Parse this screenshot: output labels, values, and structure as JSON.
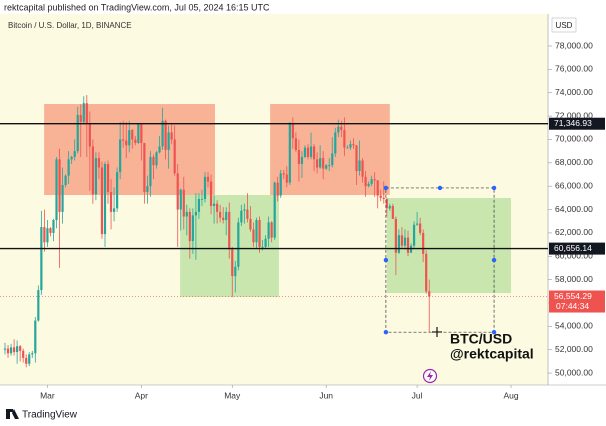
{
  "header": "rektcapital published on TradingView.com, Jul 05, 2024 16:15 UTC",
  "footer": "TradingView",
  "chart_data": {
    "type": "candlestick",
    "title": "Bitcoin / U.S. Dollar, 1D, BINANCE",
    "currency": "USD",
    "up_color": "#26a69a",
    "down_color": "#ef5350",
    "xlim": [
      -1.65,
      179.2
    ],
    "xticks": [
      {
        "value": 14,
        "label": "Mar"
      },
      {
        "value": 45,
        "label": "Apr"
      },
      {
        "value": 75,
        "label": "May"
      },
      {
        "value": 106,
        "label": "Jun"
      },
      {
        "value": 136,
        "label": "Jul"
      },
      {
        "value": 167,
        "label": "Aug"
      }
    ],
    "ylim": [
      48980,
      80740
    ],
    "yticks": [
      {
        "value": 50000,
        "label": "50,000.00"
      },
      {
        "value": 52000,
        "label": "52,000.00"
      },
      {
        "value": 54000,
        "label": "54,000.00"
      },
      {
        "value": 56000,
        "label": "56,000.00"
      },
      {
        "value": 58000,
        "label": "58,000.00"
      },
      {
        "value": 60000,
        "label": "60,000.00"
      },
      {
        "value": 62000,
        "label": "62,000.00"
      },
      {
        "value": 64000,
        "label": "64,000.00"
      },
      {
        "value": 66000,
        "label": "66,000.00"
      },
      {
        "value": 68000,
        "label": "68,000.00"
      },
      {
        "value": 70000,
        "label": "70,000.00"
      },
      {
        "value": 72000,
        "label": "72,000.00"
      },
      {
        "value": 74000,
        "label": "74,000.00"
      },
      {
        "value": 76000,
        "label": "76,000.00"
      },
      {
        "value": 78000,
        "label": "78,000.00"
      }
    ],
    "levels": [
      {
        "value": 71346.93,
        "label": "71,346.93"
      },
      {
        "value": 60656.14,
        "label": "60,656.14"
      }
    ],
    "last_price": {
      "value": 56554.29,
      "label": "56,554.29",
      "countdown": "07:44:34"
    },
    "zones": [
      {
        "color": "#f7ab8f",
        "x": [
          12.9,
          69.3
        ],
        "y": [
          65243,
          73034
        ]
      },
      {
        "color": "#c2e3a8",
        "x": [
          57.8,
          90.4
        ],
        "y": [
          56510,
          65243
        ]
      },
      {
        "color": "#f7ab8f",
        "x": [
          87.5,
          127
        ],
        "y": [
          65243,
          73034
        ]
      },
      {
        "color": "#c2e3a8",
        "x": [
          126,
          167
        ],
        "y": [
          56850,
          64990
        ]
      }
    ],
    "projection": {
      "x": [
        125.7,
        161.4
      ],
      "y": [
        53500,
        65850
      ]
    },
    "annotation": [
      "BTC/USD",
      "@rektcapital"
    ],
    "candles": [
      [
        52000,
        52600,
        51600,
        52100
      ],
      [
        52100,
        52400,
        51300,
        51700
      ],
      [
        51700,
        52500,
        51500,
        52200
      ],
      [
        52200,
        52900,
        51500,
        51800
      ],
      [
        51800,
        52800,
        50800,
        52300
      ],
      [
        52300,
        52400,
        51000,
        51900
      ],
      [
        51900,
        52100,
        50900,
        51300
      ],
      [
        51300,
        51600,
        50500,
        50800
      ],
      [
        50800,
        51800,
        50600,
        51600
      ],
      [
        51600,
        51900,
        51300,
        51700
      ],
      [
        51700,
        54800,
        50900,
        54500
      ],
      [
        54500,
        57500,
        54400,
        57100
      ],
      [
        57100,
        63900,
        56700,
        62500
      ],
      [
        62500,
        64000,
        60400,
        61200
      ],
      [
        61200,
        63100,
        60800,
        62400
      ],
      [
        62400,
        62500,
        61700,
        62000
      ],
      [
        62000,
        63200,
        61300,
        63100
      ],
      [
        63100,
        68500,
        62400,
        68300
      ],
      [
        68300,
        69200,
        59000,
        63800
      ],
      [
        63800,
        67600,
        62800,
        66100
      ],
      [
        66100,
        67000,
        65900,
        66900
      ],
      [
        66900,
        69000,
        66200,
        68300
      ],
      [
        68300,
        68600,
        67900,
        68500
      ],
      [
        68500,
        70000,
        68200,
        69000
      ],
      [
        69000,
        72800,
        68800,
        72100
      ],
      [
        72100,
        73000,
        68500,
        71500
      ],
      [
        71500,
        73700,
        71300,
        73100
      ],
      [
        73100,
        73800,
        68500,
        71400
      ],
      [
        71400,
        72400,
        65600,
        69400
      ],
      [
        69400,
        70000,
        64500,
        65300
      ],
      [
        65300,
        68900,
        64800,
        68400
      ],
      [
        68400,
        68900,
        66600,
        67600
      ],
      [
        67600,
        68100,
        61500,
        61900
      ],
      [
        61900,
        68100,
        60800,
        67900
      ],
      [
        67900,
        68200,
        64500,
        65500
      ],
      [
        65500,
        66600,
        62300,
        63800
      ],
      [
        63800,
        65900,
        63000,
        64100
      ],
      [
        64100,
        67600,
        63800,
        67200
      ],
      [
        67200,
        71500,
        66600,
        70000
      ],
      [
        70000,
        71600,
        69300,
        69900
      ],
      [
        69900,
        71500,
        68400,
        69500
      ],
      [
        69500,
        71600,
        68900,
        70800
      ],
      [
        70800,
        70900,
        69200,
        70000
      ],
      [
        70000,
        70300,
        69500,
        69700
      ],
      [
        69700,
        71400,
        69600,
        71300
      ],
      [
        71300,
        71300,
        68200,
        69700
      ],
      [
        69700,
        69700,
        64500,
        65500
      ],
      [
        65500,
        66900,
        64500,
        66000
      ],
      [
        66000,
        69000,
        65100,
        68500
      ],
      [
        68500,
        68700,
        66600,
        67800
      ],
      [
        67800,
        69000,
        67500,
        68900
      ],
      [
        68900,
        70300,
        68800,
        69400
      ],
      [
        69400,
        72700,
        69100,
        71600
      ],
      [
        71600,
        71700,
        68300,
        69100
      ],
      [
        69100,
        71200,
        67500,
        70600
      ],
      [
        70600,
        71300,
        69600,
        70000
      ],
      [
        70000,
        71200,
        66900,
        67100
      ],
      [
        67100,
        67900,
        60800,
        64000
      ],
      [
        64000,
        65800,
        62200,
        65700
      ],
      [
        65700,
        66800,
        62300,
        63400
      ],
      [
        63400,
        64400,
        61800,
        63800
      ],
      [
        63800,
        64100,
        59800,
        61300
      ],
      [
        61300,
        64100,
        60200,
        63500
      ],
      [
        63500,
        65400,
        59700,
        63800
      ],
      [
        63800,
        65400,
        63200,
        64900
      ],
      [
        64900,
        65700,
        64300,
        64900
      ],
      [
        64900,
        67200,
        64600,
        66800
      ],
      [
        66800,
        67200,
        65900,
        66400
      ],
      [
        66400,
        67000,
        63600,
        64300
      ],
      [
        64300,
        65200,
        62800,
        64500
      ],
      [
        64500,
        64800,
        62800,
        63800
      ],
      [
        63800,
        64400,
        62900,
        63300
      ],
      [
        63300,
        64200,
        62800,
        63100
      ],
      [
        63100,
        64200,
        61800,
        63800
      ],
      [
        63800,
        64600,
        59800,
        60600
      ],
      [
        60600,
        60800,
        56500,
        58300
      ],
      [
        58300,
        59600,
        56900,
        59100
      ],
      [
        59100,
        63300,
        58800,
        62900
      ],
      [
        62900,
        64400,
        62600,
        63900
      ],
      [
        63900,
        64500,
        62800,
        64000
      ],
      [
        64000,
        65400,
        62900,
        63200
      ],
      [
        63200,
        64300,
        62100,
        62300
      ],
      [
        62300,
        62900,
        60800,
        61200
      ],
      [
        61200,
        63300,
        60700,
        63100
      ],
      [
        63100,
        63400,
        60300,
        60800
      ],
      [
        60800,
        61400,
        60500,
        60800
      ],
      [
        60800,
        61800,
        60700,
        61500
      ],
      [
        61500,
        63400,
        60800,
        62900
      ],
      [
        62900,
        63000,
        61200,
        61600
      ],
      [
        61600,
        66400,
        61400,
        66300
      ],
      [
        66300,
        66800,
        64700,
        65200
      ],
      [
        65200,
        67400,
        65000,
        67100
      ],
      [
        67100,
        67400,
        66600,
        67000
      ],
      [
        67000,
        67700,
        65900,
        66300
      ],
      [
        66300,
        71500,
        66100,
        71400
      ],
      [
        71400,
        71900,
        69200,
        70100
      ],
      [
        70100,
        70600,
        68900,
        69100
      ],
      [
        69100,
        70000,
        66400,
        67900
      ],
      [
        67900,
        69000,
        66700,
        68500
      ],
      [
        68500,
        69500,
        68400,
        69300
      ],
      [
        69300,
        69600,
        68300,
        68500
      ],
      [
        68500,
        70600,
        68300,
        69400
      ],
      [
        69400,
        69600,
        67300,
        68300
      ],
      [
        68300,
        68900,
        67100,
        67600
      ],
      [
        67600,
        69500,
        67500,
        68400
      ],
      [
        68400,
        69000,
        66600,
        67500
      ],
      [
        67500,
        67900,
        67400,
        67800
      ],
      [
        67800,
        68400,
        67300,
        67800
      ],
      [
        67800,
        70200,
        67600,
        68800
      ],
      [
        68800,
        71000,
        68500,
        70600
      ],
      [
        70600,
        71700,
        70200,
        71100
      ],
      [
        71100,
        71600,
        70200,
        70800
      ],
      [
        70800,
        71900,
        68600,
        69300
      ],
      [
        69300,
        69500,
        69200,
        69300
      ],
      [
        69300,
        69900,
        69100,
        69600
      ],
      [
        69600,
        70100,
        69200,
        69500
      ],
      [
        69500,
        69500,
        66100,
        67300
      ],
      [
        67300,
        69900,
        66900,
        68200
      ],
      [
        68200,
        68400,
        66300,
        66800
      ],
      [
        66800,
        67300,
        65100,
        66000
      ],
      [
        66000,
        66400,
        65900,
        66200
      ],
      [
        66200,
        66900,
        66000,
        66600
      ],
      [
        66600,
        67200,
        65100,
        66500
      ],
      [
        66500,
        66500,
        64100,
        65200
      ],
      [
        65200,
        65700,
        64700,
        65000
      ],
      [
        65000,
        66400,
        64500,
        64900
      ],
      [
        64900,
        65000,
        63400,
        64100
      ],
      [
        64100,
        64500,
        63900,
        64300
      ],
      [
        64300,
        64500,
        63200,
        63200
      ],
      [
        63200,
        63400,
        58400,
        60300
      ],
      [
        60300,
        62300,
        60200,
        61800
      ],
      [
        61800,
        62500,
        60700,
        60900
      ],
      [
        60900,
        62300,
        60600,
        61600
      ],
      [
        61600,
        62200,
        60000,
        60300
      ],
      [
        60300,
        61100,
        60300,
        60900
      ],
      [
        60900,
        63000,
        60700,
        62700
      ],
      [
        62700,
        63800,
        62600,
        62800
      ],
      [
        62800,
        63300,
        61800,
        62000
      ],
      [
        62000,
        62300,
        59500,
        60200
      ],
      [
        60200,
        60500,
        56800,
        57000
      ],
      [
        57000,
        58000,
        53500,
        56554.29
      ]
    ]
  }
}
